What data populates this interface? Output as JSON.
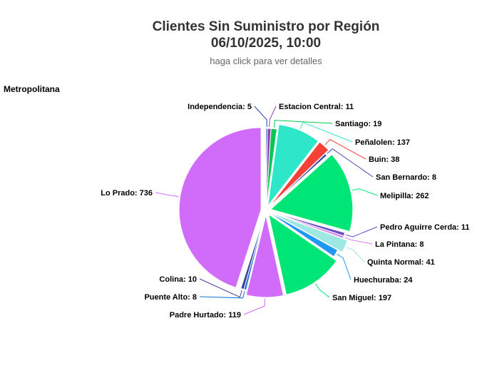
{
  "chart_data": {
    "type": "pie",
    "title": "Clientes Sin Suministro por Región",
    "title_line2": "06/10/2025, 10:00",
    "subtitle": "haga click para ver detalles",
    "region_label": "Metropolitana",
    "slices": [
      {
        "name": "Independencia",
        "value": 5,
        "color": "#1f3fae"
      },
      {
        "name": "Estacion Central",
        "value": 11,
        "color": "#8e44ad"
      },
      {
        "name": "Santiago",
        "value": 19,
        "color": "#00c853"
      },
      {
        "name": "Peñalolen",
        "value": 137,
        "color": "#2ee6c8"
      },
      {
        "name": "Buin",
        "value": 38,
        "color": "#f44336"
      },
      {
        "name": "San Bernardo",
        "value": 8,
        "color": "#3949ab"
      },
      {
        "name": "Melipilla",
        "value": 262,
        "color": "#00e676"
      },
      {
        "name": "Pedro Aguirre Cerda",
        "value": 11,
        "color": "#6a4cc2"
      },
      {
        "name": "La Pintana",
        "value": 8,
        "color": "#d580e8"
      },
      {
        "name": "Quinta Normal",
        "value": 41,
        "color": "#9ee8e3"
      },
      {
        "name": "Huechuraba",
        "value": 24,
        "color": "#2196f3"
      },
      {
        "name": "San Miguel",
        "value": 197,
        "color": "#00e676"
      },
      {
        "name": "Padre Hurtado",
        "value": 119,
        "color": "#d16bfa"
      },
      {
        "name": "Puente Alto",
        "value": 8,
        "color": "#1976d2"
      },
      {
        "name": "Colina",
        "value": 10,
        "color": "#3f3d9c"
      },
      {
        "name": "Lo Prado",
        "value": 736,
        "color": "#d16bfa"
      }
    ]
  }
}
